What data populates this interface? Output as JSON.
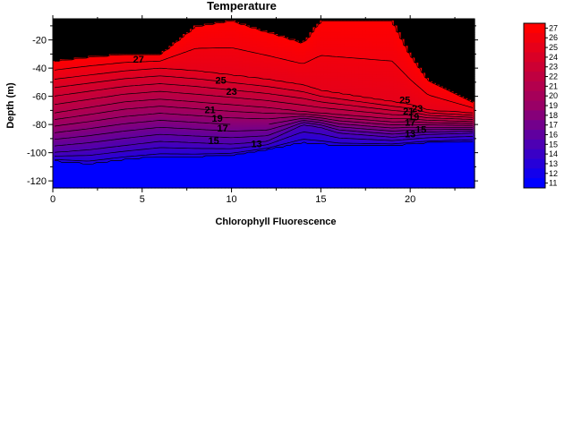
{
  "chart_data": {
    "type": "heatmap",
    "title": "Temperature",
    "xlabel": "Chlorophyll Fluorescence",
    "ylabel": "Depth (m)",
    "xlim": [
      0,
      23.6
    ],
    "ylim": [
      -125,
      -5
    ],
    "x_ticks": [
      "0",
      "5",
      "10",
      "15",
      "20"
    ],
    "y_ticks": [
      "-20",
      "-40",
      "-60",
      "-80",
      "-100",
      "-120"
    ],
    "colorbar": {
      "min": 11,
      "max": 27,
      "labels": [
        "27",
        "26",
        "25",
        "24",
        "23",
        "22",
        "21",
        "20",
        "19",
        "18",
        "17",
        "16",
        "15",
        "14",
        "13",
        "12",
        "11"
      ]
    },
    "colors": {
      "warm": "#ff0000",
      "mid": "#990066",
      "cold": "#0000ff",
      "frame": "#000000"
    },
    "contour_levels": [
      12,
      13,
      14,
      15,
      16,
      17,
      18,
      19,
      20,
      21,
      22,
      23,
      24,
      25,
      26,
      27
    ],
    "contour_labels": [
      {
        "text": "27",
        "x": 4.8,
        "y": -36
      },
      {
        "text": "25",
        "x": 9.4,
        "y": -51
      },
      {
        "text": "23",
        "x": 10.0,
        "y": -59
      },
      {
        "text": "21",
        "x": 8.8,
        "y": -72
      },
      {
        "text": "19",
        "x": 9.2,
        "y": -78
      },
      {
        "text": "17",
        "x": 9.5,
        "y": -85
      },
      {
        "text": "15",
        "x": 9.0,
        "y": -94
      },
      {
        "text": "13",
        "x": 11.4,
        "y": -96
      },
      {
        "text": "25",
        "x": 19.7,
        "y": -65
      },
      {
        "text": "23",
        "x": 20.4,
        "y": -71
      },
      {
        "text": "21",
        "x": 19.9,
        "y": -73
      },
      {
        "text": "19",
        "x": 20.2,
        "y": -77
      },
      {
        "text": "17",
        "x": 20.0,
        "y": -81
      },
      {
        "text": "15",
        "x": 20.6,
        "y": -86
      },
      {
        "text": "13",
        "x": 20.0,
        "y": -89
      }
    ],
    "profiles": {
      "x": [
        0,
        2,
        4,
        6,
        8,
        10,
        12,
        14,
        15,
        16,
        18,
        19,
        20,
        21,
        23.6
      ],
      "mixed_layer_base_depth": [
        -35,
        -32,
        -30,
        -30,
        -10,
        -6,
        -14,
        -22,
        -6,
        -6,
        -6,
        -6,
        -30,
        -48,
        -65
      ],
      "thermocline_top_depth": [
        -48,
        -45,
        -42,
        -40,
        -42,
        -45,
        -48,
        -52,
        -56,
        -58,
        -62,
        -64,
        -66,
        -70,
        -72
      ],
      "thermocline_mid_depth": [
        -72,
        -68,
        -64,
        -62,
        -64,
        -66,
        -68,
        -71,
        -72,
        -73,
        -75,
        -76,
        -76,
        -77,
        -78
      ],
      "thermocline_base_depth": [
        -100,
        -98,
        -95,
        -92,
        -93,
        -94,
        -92,
        -80,
        -82,
        -86,
        -88,
        -89,
        -88,
        -87,
        -86
      ],
      "cold_top_depth": [
        -106,
        -108,
        -105,
        -103,
        -103,
        -102,
        -98,
        -93,
        -94,
        -95,
        -95,
        -95,
        -94,
        -93,
        -92
      ]
    }
  }
}
